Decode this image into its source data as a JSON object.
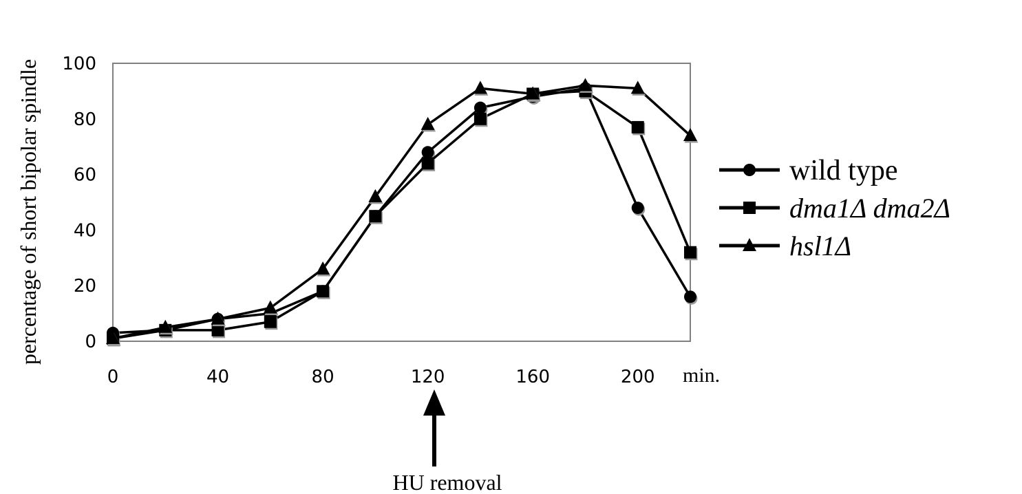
{
  "chart_data": {
    "type": "line",
    "ylabel": "percentage of short bipolar spindle",
    "x_unit_label": "min.",
    "x": [
      0,
      20,
      40,
      60,
      80,
      100,
      120,
      140,
      160,
      180,
      200,
      220
    ],
    "x_ticks": [
      0,
      40,
      80,
      120,
      160,
      200
    ],
    "y_ticks": [
      0,
      20,
      40,
      60,
      80,
      100
    ],
    "xlim": [
      0,
      220
    ],
    "ylim": [
      0,
      100
    ],
    "grid": false,
    "legend_position": "right",
    "series": [
      {
        "name": "wild type",
        "marker": "circle",
        "values": [
          3,
          4,
          8,
          10,
          18,
          45,
          68,
          84,
          88,
          91,
          48,
          16
        ]
      },
      {
        "name": "dma1Δ dma2Δ",
        "marker": "square",
        "values": [
          1,
          4,
          4,
          7,
          18,
          45,
          64,
          80,
          89,
          90,
          77,
          32
        ]
      },
      {
        "name": "hsl1Δ",
        "marker": "triangle",
        "values": [
          1,
          5,
          8,
          12,
          26,
          52,
          78,
          91,
          89,
          92,
          91,
          74
        ]
      }
    ],
    "annotation": {
      "text": "HU removal",
      "x": 120
    },
    "colors": {
      "line": "#000000",
      "axis": "#808080",
      "marker_shadow": "#999999"
    }
  }
}
